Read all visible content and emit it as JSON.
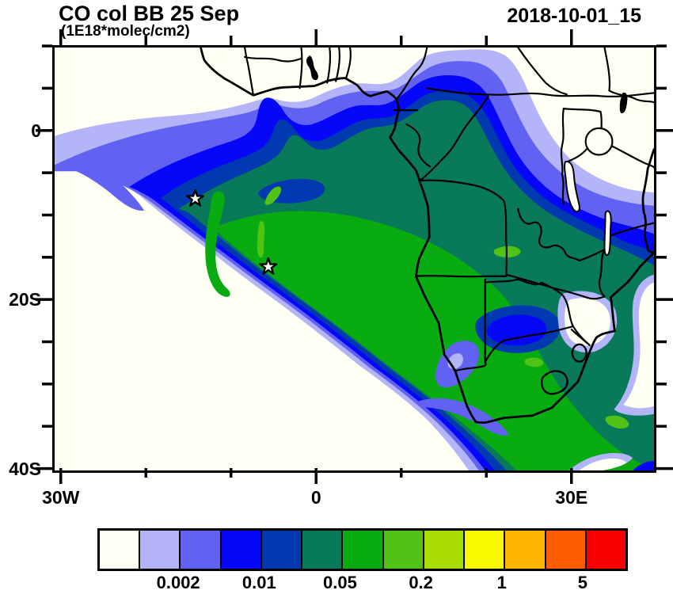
{
  "header": {
    "title": "CO col BB 25 Sep",
    "subtitle": "(1E18*molec/cm2)",
    "timestamp": "2018-10-01_15"
  },
  "axes": {
    "y": {
      "tick_degrees": [
        10,
        5,
        0,
        -5,
        -10,
        -15,
        -20,
        -25,
        -30,
        -35,
        -40
      ],
      "major_degrees": [
        0,
        -20,
        -40
      ],
      "labels": [
        {
          "deg": 0,
          "text": "0"
        },
        {
          "deg": -20,
          "text": "20S"
        },
        {
          "deg": -40,
          "text": "40S"
        }
      ]
    },
    "x": {
      "tick_degrees": [
        -30,
        -20,
        -10,
        0,
        10,
        20,
        30
      ],
      "major_degrees": [
        -30,
        0,
        30
      ],
      "labels": [
        {
          "deg": -30,
          "text": "30W"
        },
        {
          "deg": 0,
          "text": "0"
        },
        {
          "deg": 30,
          "text": "30E"
        }
      ]
    }
  },
  "colorbar": {
    "colors": [
      "#FFFFF4",
      "#B4B4F8",
      "#6262F2",
      "#0606F8",
      "#0039B0",
      "#087A5A",
      "#08AC10",
      "#50C314",
      "#A8DC00",
      "#F8F800",
      "#FFB400",
      "#FF5E00",
      "#F80000"
    ],
    "labels": [
      "0.002",
      "0.01",
      "0.05",
      "0.2",
      "1",
      "5"
    ],
    "label_boundary_indices": [
      2,
      4,
      6,
      8,
      10,
      12
    ]
  },
  "map": {
    "background": "#FFFFF4",
    "outline_color": "#000000",
    "markers": [
      {
        "symbol": "star",
        "lon": -14.3,
        "lat": -8.0
      },
      {
        "symbol": "star",
        "lon": -5.7,
        "lat": -16.1
      }
    ]
  },
  "chart_data": {
    "type": "heatmap",
    "subtype": "filled_contour_map",
    "title": "CO col BB 25 Sep",
    "units": "1E18*molec/cm2",
    "valid_time": "2018-10-01_15",
    "lon_range": [
      -31,
      40
    ],
    "lat_range": [
      -40.5,
      10.1
    ],
    "contour_levels": [
      0.001,
      0.002,
      0.005,
      0.01,
      0.02,
      0.05,
      0.1,
      0.2,
      0.5,
      1,
      2,
      5
    ],
    "labeled_levels": [
      0.002,
      0.01,
      0.05,
      0.2,
      1,
      5
    ],
    "palette": [
      "#FFFFF4",
      "#B4B4F8",
      "#6262F2",
      "#0606F8",
      "#0039B0",
      "#087A5A",
      "#08AC10",
      "#50C314",
      "#A8DC00",
      "#F8F800",
      "#FFB400",
      "#FF5E00",
      "#F80000"
    ],
    "legend_position": "bottom",
    "grid": false,
    "x_tick_labels": [
      "30W",
      "0",
      "30E"
    ],
    "y_tick_labels": [
      "0",
      "20S",
      "40S"
    ],
    "markers": [
      {
        "symbol": "star",
        "lon": -14.3,
        "lat": -8.0
      },
      {
        "symbol": "star",
        "lon": -5.7,
        "lat": -16.1
      }
    ],
    "features": [
      {
        "name": "main-plume",
        "description": "Large biomass-burning CO plume over the South Atlantic and southern Africa, peak band 0.05-0.2 (green) centered near 10W-25E, 5S-25S, extending southeast past South Africa",
        "max_level_reached": 0.2
      },
      {
        "name": "north-band",
        "description": "Gradient band 0.001-0.02 along Gulf of Guinea coast into central Africa"
      },
      {
        "name": "clear-areas",
        "description": "Values below 0.001 over Sahel, East Africa (Kenya/Uganda), southern Mozambique and southwest Atlantic corner"
      }
    ]
  }
}
